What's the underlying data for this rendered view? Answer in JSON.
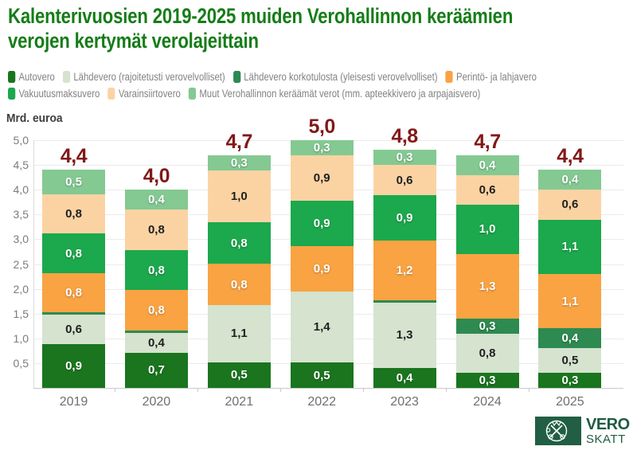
{
  "title": {
    "line1": "Kalenterivuosien 2019-2025 muiden Verohallinnon keräämien",
    "line2": "verojen kertymät verolajeittain",
    "color": "#157d17"
  },
  "chart_data": {
    "type": "bar",
    "stacked": true,
    "title": "Kalenterivuosien 2019-2025 muiden Verohallinnon keräämien verojen kertymät verolajeittain",
    "unit_label": "Mrd. euroa",
    "categories": [
      "2019",
      "2020",
      "2021",
      "2022",
      "2023",
      "2024",
      "2025"
    ],
    "totals": [
      4.4,
      4.0,
      4.7,
      5.0,
      4.8,
      4.7,
      4.4
    ],
    "totals_labels": [
      "4,4",
      "4,0",
      "4,7",
      "5,0",
      "4,8",
      "4,7",
      "4,4"
    ],
    "total_label_color": "#821818",
    "ylim": [
      0,
      5
    ],
    "ytick_labels": [
      "5,0",
      "4,5",
      "4,0",
      "3,5",
      "3,0",
      "2,5",
      "2,0",
      "1,5",
      "1,0",
      "0,5"
    ],
    "grid": true,
    "legend_position": "top",
    "legend_rows": [
      [
        0,
        1,
        2,
        3
      ],
      [
        4,
        5,
        6
      ]
    ],
    "series": [
      {
        "name": "Autovero",
        "color": "#1a751e",
        "text_style": "light",
        "values": [
          0.9,
          0.7,
          0.5,
          0.5,
          0.4,
          0.3,
          0.3
        ],
        "labels": [
          "0,9",
          "0,7",
          "0,5",
          "0,5",
          "0,4",
          "0,3",
          "0,3"
        ]
      },
      {
        "name": "Lähdevero (rajoitetusti verovelvolliset)",
        "color": "#d5e3cf",
        "text_style": "dark",
        "values": [
          0.6,
          0.4,
          1.1,
          1.4,
          1.3,
          0.8,
          0.5
        ],
        "labels": [
          "0,6",
          "0,4",
          "1,1",
          "1,4",
          "1,3",
          "0,8",
          "0,5"
        ]
      },
      {
        "name": "Lähdevero korkotulosta (yleisesti verovelvolliset)",
        "color": "#2d8a50",
        "text_style": "light",
        "values": [
          0.04,
          0.04,
          0,
          0,
          0.04,
          0.3,
          0.4
        ],
        "labels": [
          "",
          "",
          "",
          "",
          "",
          "0,3",
          "0,4"
        ]
      },
      {
        "name": "Perintö- ja lahjavero",
        "color": "#f9a343",
        "text_style": "light",
        "values": [
          0.8,
          0.8,
          0.8,
          0.9,
          1.2,
          1.3,
          1.1
        ],
        "labels": [
          "0,8",
          "0,8",
          "0,8",
          "0,9",
          "1,2",
          "1,3",
          "1,1"
        ]
      },
      {
        "name": "Vakuutusmaksuvero",
        "color": "#1ca84c",
        "text_style": "light",
        "values": [
          0.8,
          0.8,
          0.8,
          0.9,
          0.9,
          1.0,
          1.1
        ],
        "labels": [
          "0,8",
          "0,8",
          "0,8",
          "0,9",
          "0,9",
          "1,0",
          "1,1"
        ]
      },
      {
        "name": "Varainsiirtovero",
        "color": "#fbd3a3",
        "text_style": "dark",
        "values": [
          0.8,
          0.8,
          1.0,
          0.9,
          0.6,
          0.6,
          0.6
        ],
        "labels": [
          "0,8",
          "0,8",
          "1,0",
          "0,9",
          "0,6",
          "0,6",
          "0,6"
        ]
      },
      {
        "name": "Muut Verohallinnon keräämät verot (mm. apteekkivero ja arpajaisvero)",
        "color": "#84c992",
        "text_style": "light",
        "values": [
          0.5,
          0.4,
          0.3,
          0.3,
          0.3,
          0.4,
          0.4
        ],
        "labels": [
          "0,5",
          "0,4",
          "0,3",
          "0,3",
          "0,3",
          "0,4",
          "0,4"
        ]
      }
    ]
  },
  "logo": {
    "primary": "VERO",
    "secondary": "SKATT",
    "text_color": "#1d5c40",
    "square_color": "#215e43"
  }
}
